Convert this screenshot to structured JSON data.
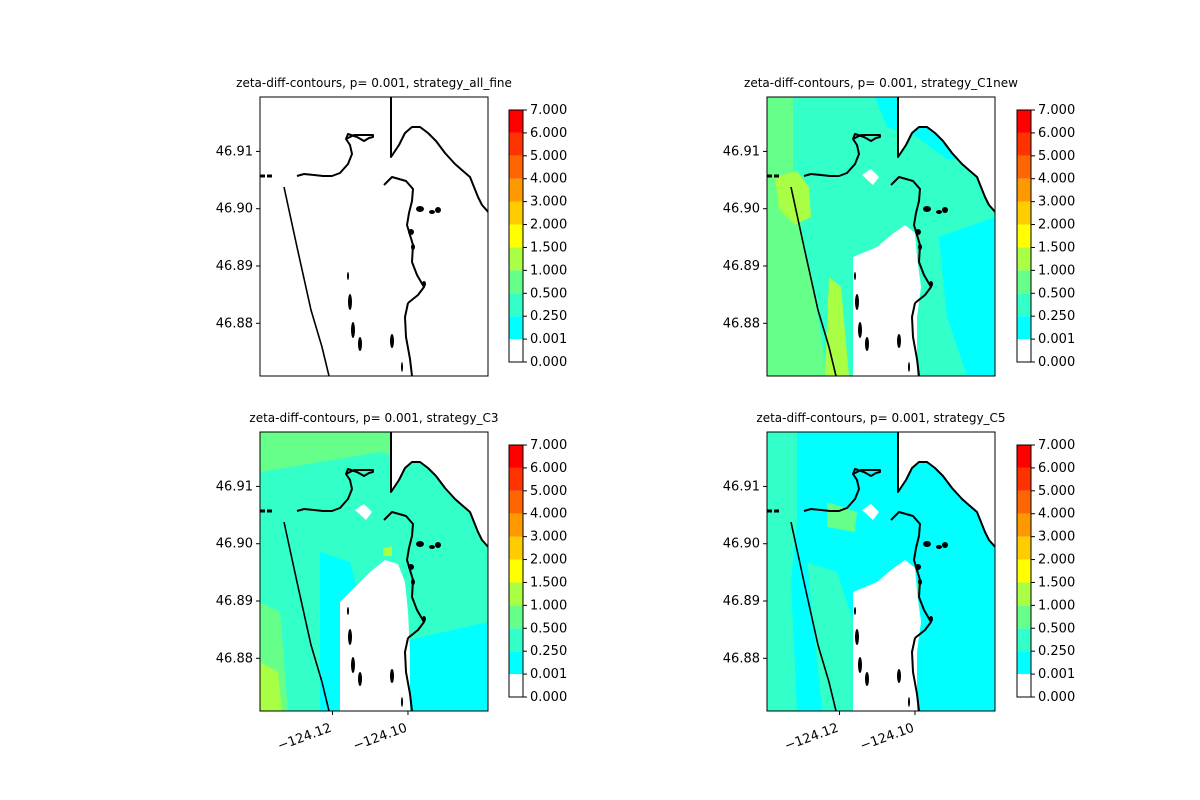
{
  "figure": {
    "background": "#ffffff"
  },
  "chart_data": [
    {
      "type": "heatmap",
      "title": "zeta-diff-contours, p= 0.001, strategy_all_fine",
      "xlabel": "",
      "ylabel": "",
      "xlim": [
        -124.1392,
        -124.0788
      ],
      "ylim": [
        46.8708,
        46.9195
      ],
      "yticks": [
        46.88,
        46.89,
        46.9,
        46.91
      ],
      "ytick_labels": [
        "46.88",
        "46.89",
        "46.90",
        "46.91"
      ],
      "xticks": [],
      "xtick_labels": [],
      "field": "none",
      "colorbar": {
        "levels": [
          0.0,
          0.001,
          0.25,
          0.5,
          1.0,
          1.5,
          2.0,
          3.0,
          4.0,
          5.0,
          6.0,
          7.0
        ],
        "labels": [
          "0.000",
          "0.001",
          "0.250",
          "0.500",
          "1.000",
          "1.500",
          "2.000",
          "3.000",
          "4.000",
          "5.000",
          "6.000",
          "7.000"
        ],
        "colors": [
          "#ffffff",
          "#00ffff",
          "#33ffc8",
          "#66ff8a",
          "#a8ff44",
          "#ffff00",
          "#ffcc00",
          "#ff9900",
          "#ff6600",
          "#ff3300",
          "#ff0000"
        ]
      }
    },
    {
      "type": "heatmap",
      "title": "zeta-diff-contours, p= 0.001, strategy_C1new",
      "xlabel": "",
      "ylabel": "",
      "xlim": [
        -124.1392,
        -124.0788
      ],
      "ylim": [
        46.8708,
        46.9195
      ],
      "yticks": [
        46.88,
        46.89,
        46.9,
        46.91
      ],
      "ytick_labels": [
        "46.88",
        "46.89",
        "46.90",
        "46.91"
      ],
      "xticks": [],
      "xtick_labels": [],
      "field": "c1new",
      "colorbar": {
        "levels": [
          0.0,
          0.001,
          0.25,
          0.5,
          1.0,
          1.5,
          2.0,
          3.0,
          4.0,
          5.0,
          6.0,
          7.0
        ],
        "labels": [
          "0.000",
          "0.001",
          "0.250",
          "0.500",
          "1.000",
          "1.500",
          "2.000",
          "3.000",
          "4.000",
          "5.000",
          "6.000",
          "7.000"
        ],
        "colors": [
          "#ffffff",
          "#00ffff",
          "#33ffc8",
          "#66ff8a",
          "#a8ff44",
          "#ffff00",
          "#ffcc00",
          "#ff9900",
          "#ff6600",
          "#ff3300",
          "#ff0000"
        ]
      }
    },
    {
      "type": "heatmap",
      "title": "zeta-diff-contours, p= 0.001, strategy_C3",
      "xlabel": "",
      "ylabel": "",
      "xlim": [
        -124.1392,
        -124.0788
      ],
      "ylim": [
        46.8708,
        46.9195
      ],
      "yticks": [
        46.88,
        46.89,
        46.9,
        46.91
      ],
      "ytick_labels": [
        "46.88",
        "46.89",
        "46.90",
        "46.91"
      ],
      "xticks": [
        -124.12,
        -124.1
      ],
      "xtick_labels": [
        "−124.12",
        "−124.10"
      ],
      "field": "c3",
      "colorbar": {
        "levels": [
          0.0,
          0.001,
          0.25,
          0.5,
          1.0,
          1.5,
          2.0,
          3.0,
          4.0,
          5.0,
          6.0,
          7.0
        ],
        "labels": [
          "0.000",
          "0.001",
          "0.250",
          "0.500",
          "1.000",
          "1.500",
          "2.000",
          "3.000",
          "4.000",
          "5.000",
          "6.000",
          "7.000"
        ],
        "colors": [
          "#ffffff",
          "#00ffff",
          "#33ffc8",
          "#66ff8a",
          "#a8ff44",
          "#ffff00",
          "#ffcc00",
          "#ff9900",
          "#ff6600",
          "#ff3300",
          "#ff0000"
        ]
      }
    },
    {
      "type": "heatmap",
      "title": "zeta-diff-contours, p= 0.001, strategy_C5",
      "xlabel": "",
      "ylabel": "",
      "xlim": [
        -124.1392,
        -124.0788
      ],
      "ylim": [
        46.8708,
        46.9195
      ],
      "yticks": [
        46.88,
        46.89,
        46.9,
        46.91
      ],
      "ytick_labels": [
        "46.88",
        "46.89",
        "46.90",
        "46.91"
      ],
      "xticks": [
        -124.12,
        -124.1
      ],
      "xtick_labels": [
        "−124.12",
        "−124.10"
      ],
      "field": "c5",
      "colorbar": {
        "levels": [
          0.0,
          0.001,
          0.25,
          0.5,
          1.0,
          1.5,
          2.0,
          3.0,
          4.0,
          5.0,
          6.0,
          7.0
        ],
        "labels": [
          "0.000",
          "0.001",
          "0.250",
          "0.500",
          "1.000",
          "1.500",
          "2.000",
          "3.000",
          "4.000",
          "5.000",
          "6.000",
          "7.000"
        ],
        "colors": [
          "#ffffff",
          "#00ffff",
          "#33ffc8",
          "#66ff8a",
          "#a8ff44",
          "#ffff00",
          "#ffcc00",
          "#ff9900",
          "#ff6600",
          "#ff3300",
          "#ff0000"
        ]
      }
    }
  ]
}
